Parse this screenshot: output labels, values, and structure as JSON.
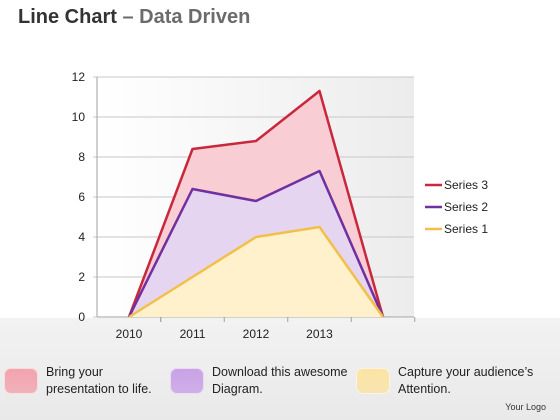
{
  "header": {
    "title": "Line Chart",
    "subtitle": "– Data Driven"
  },
  "chart_data": {
    "type": "area",
    "categories": [
      "",
      "2010",
      "2011",
      "2012",
      "2013",
      ""
    ],
    "ylim": [
      0,
      12
    ],
    "y_ticks": [
      0,
      2,
      4,
      6,
      8,
      10,
      12
    ],
    "grid": true,
    "legend_position": "right",
    "series": [
      {
        "name": "Series 1",
        "values": [
          0,
          0,
          2,
          4,
          4.5,
          0
        ],
        "color": "#f2c04a",
        "fill": "#fff1cc"
      },
      {
        "name": "Series 2",
        "values": [
          0,
          0,
          6.4,
          5.8,
          7.3,
          0
        ],
        "color": "#7030a0",
        "fill": "#e6d5f0"
      },
      {
        "name": "Series 3",
        "values": [
          0,
          0,
          8.4,
          8.8,
          11.3,
          0
        ],
        "color": "#c8283c",
        "fill": "#f8cdd3"
      }
    ],
    "legend_order": [
      "Series 3",
      "Series 2",
      "Series 1"
    ]
  },
  "captions": [
    {
      "text": "Bring your\npresentation to life.",
      "color": "#f2a3ad"
    },
    {
      "text": "Download this awesome\nDiagram.",
      "color": "#c9a1e6"
    },
    {
      "text": "Capture your audience’s\nAttention.",
      "color": "#fbe3a3"
    }
  ],
  "footer": {
    "logo_text": "Your Logo"
  }
}
